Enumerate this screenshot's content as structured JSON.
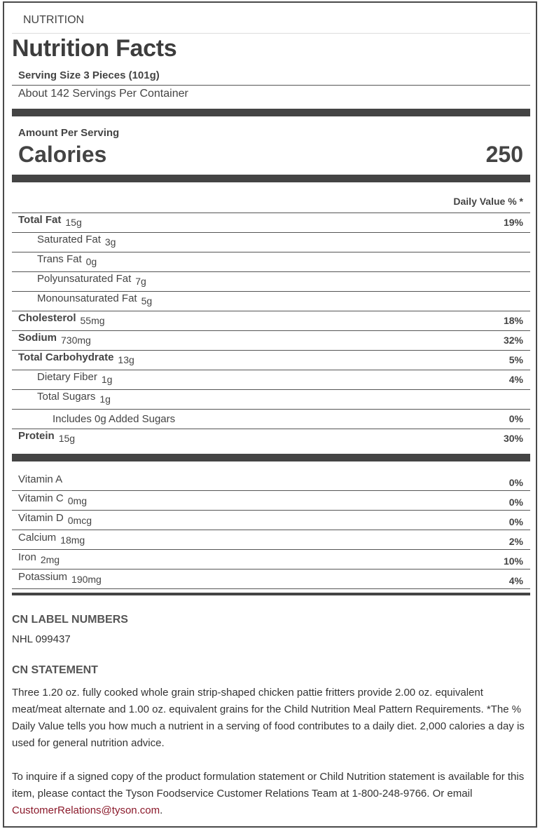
{
  "section_label": "NUTRITION",
  "title": "Nutrition Facts",
  "serving_size": "Serving Size 3 Pieces (101g)",
  "servings_per_container": "About 142 Servings Per Container",
  "amount_per_serving": "Amount Per Serving",
  "calories_label": "Calories",
  "calories_value": "250",
  "daily_value_header": "Daily Value % *",
  "nutrients": [
    {
      "label": "Total Fat",
      "amount": "15g",
      "pct": "19%"
    },
    {
      "label": "Saturated Fat",
      "amount": "3g",
      "pct": ""
    },
    {
      "label": "Trans Fat",
      "amount": "0g",
      "pct": ""
    },
    {
      "label": "Polyunsaturated Fat",
      "amount": "7g",
      "pct": ""
    },
    {
      "label": "Monounsaturated Fat",
      "amount": "5g",
      "pct": ""
    },
    {
      "label": "Cholesterol",
      "amount": "55mg",
      "pct": "18%"
    },
    {
      "label": "Sodium",
      "amount": "730mg",
      "pct": "32%"
    },
    {
      "label": "Total Carbohydrate",
      "amount": "13g",
      "pct": "5%"
    },
    {
      "label": "Dietary Fiber",
      "amount": "1g",
      "pct": "4%"
    },
    {
      "label": "Total Sugars",
      "amount": "1g",
      "pct": ""
    },
    {
      "label": "Includes 0g Added Sugars",
      "amount": "",
      "pct": "0%"
    },
    {
      "label": "Protein",
      "amount": "15g",
      "pct": "30%"
    }
  ],
  "vitamins": [
    {
      "label": "Vitamin A",
      "amount": "",
      "pct": "0%"
    },
    {
      "label": "Vitamin C",
      "amount": "0mg",
      "pct": "0%"
    },
    {
      "label": "Vitamin D",
      "amount": "0mcg",
      "pct": "0%"
    },
    {
      "label": "Calcium",
      "amount": "18mg",
      "pct": "2%"
    },
    {
      "label": "Iron",
      "amount": "2mg",
      "pct": "10%"
    },
    {
      "label": "Potassium",
      "amount": "190mg",
      "pct": "4%"
    }
  ],
  "cn_label": {
    "heading": "CN LABEL NUMBERS",
    "value": "NHL 099437"
  },
  "cn_statement": {
    "heading": "CN STATEMENT",
    "text": "Three 1.20 oz. fully cooked whole grain strip-shaped chicken pattie fritters provide 2.00 oz. equivalent meat/meat alternate and 1.00 oz. equivalent grains for the Child Nutrition Meal Pattern Requirements. *The % Daily Value tells you how much a nutrient in a serving of food contributes to a daily diet. 2,000 calories a day is used for general nutrition advice."
  },
  "inquiry": {
    "text": "To inquire if a signed copy of the product formulation statement or Child Nutrition statement is available for this item, please contact the Tyson Foodservice Customer Relations Team at 1-800-248-9766. Or email ",
    "email": "CustomerRelations@tyson.com",
    "end": "."
  },
  "colors": {
    "text": "#444444",
    "link": "#8b1a2b",
    "bars": "#444444"
  }
}
